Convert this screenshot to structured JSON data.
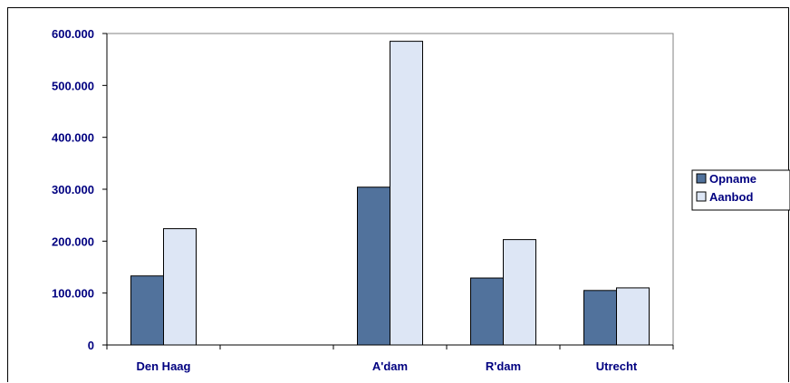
{
  "chart_data": {
    "type": "bar",
    "categories": [
      "Den Haag",
      "",
      "A'dam",
      "R'dam",
      "Utrecht"
    ],
    "series": [
      {
        "name": "Opname",
        "color": "#51729c",
        "values": [
          133000,
          null,
          304000,
          129000,
          105000
        ]
      },
      {
        "name": "Aanbod",
        "color": "#dde6f5",
        "values": [
          224000,
          null,
          585000,
          203000,
          110000
        ]
      }
    ],
    "y_ticks": [
      "0",
      "100.000",
      "200.000",
      "300.000",
      "400.000",
      "500.000",
      "600.000"
    ],
    "ylim": [
      0,
      600000
    ],
    "grid": false,
    "legend_position": "right",
    "title": "",
    "xlabel": "",
    "ylabel": ""
  }
}
